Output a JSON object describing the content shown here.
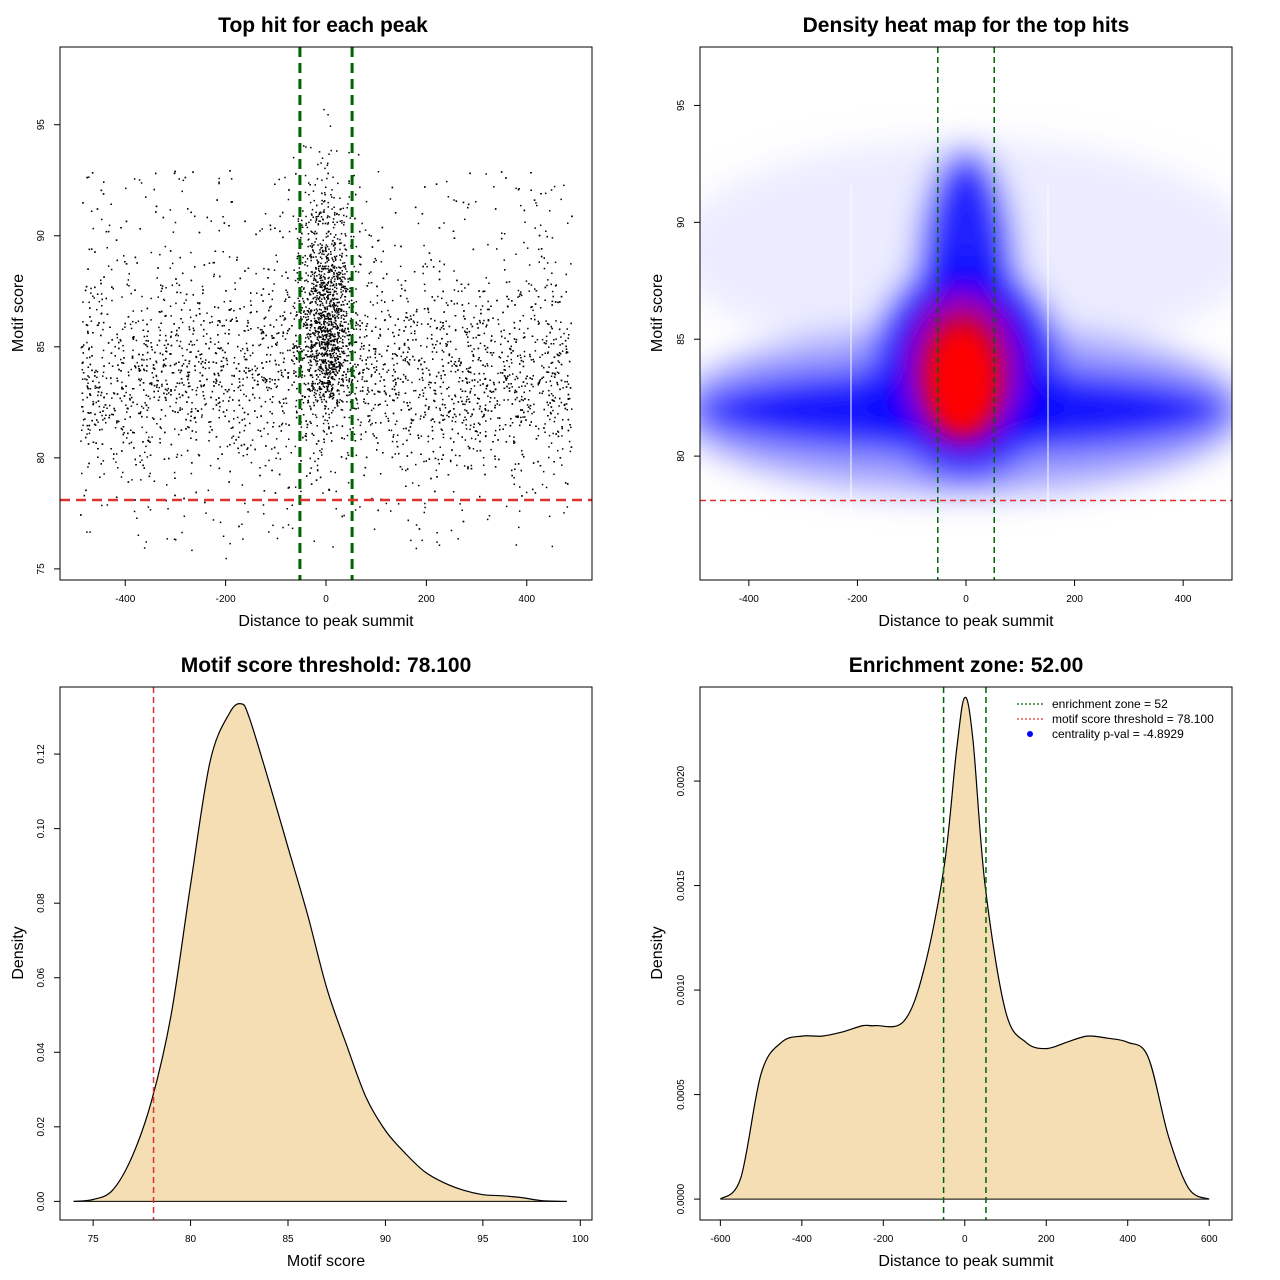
{
  "chart_data": [
    {
      "type": "scatter",
      "title": "Top hit for each peak",
      "xlabel": "Distance to peak summit",
      "ylabel": "Motif score",
      "xlim": [
        -530,
        530
      ],
      "ylim": [
        74.5,
        98.5
      ],
      "xticks": [
        -400,
        -200,
        0,
        200,
        400
      ],
      "yticks": [
        75,
        80,
        85,
        90,
        95
      ],
      "vlines": [
        -52,
        52
      ],
      "hline": 78.1,
      "colors": {
        "points": "#000000",
        "vline": "#006400",
        "hline": "#e03030"
      },
      "points_summary": {
        "n_approx": 6000,
        "x_range": [
          -490,
          490
        ],
        "y_range": [
          75.5,
          97.5
        ],
        "center_y": 83,
        "central_peak_x": 0
      }
    },
    {
      "type": "heatmap",
      "title": "Density heat map for the top hits",
      "xlabel": "Distance to peak summit",
      "ylabel": "Motif score",
      "xlim": [
        -490,
        490
      ],
      "ylim": [
        74.7,
        97.5
      ],
      "xticks": [
        -400,
        -200,
        0,
        200,
        400
      ],
      "yticks": [
        80,
        85,
        90,
        95
      ],
      "vlines": [
        -52,
        52
      ],
      "hline": 78.1,
      "colors": {
        "low": "#ffffff",
        "mid": "#0000ff",
        "high": "#ff0000",
        "vline": "#006400",
        "hline": "#e03030"
      }
    },
    {
      "type": "area",
      "title": "Motif score threshold: 78.100",
      "xlabel": "Motif score",
      "ylabel": "Density",
      "xlim": [
        73.3,
        100.6
      ],
      "ylim": [
        -0.005,
        0.138
      ],
      "xticks": [
        75,
        80,
        85,
        90,
        95,
        100
      ],
      "yticks": [
        0.0,
        0.02,
        0.04,
        0.06,
        0.08,
        0.1,
        0.12
      ],
      "ytick_labels": [
        "0.00",
        "0.02",
        "0.04",
        "0.06",
        "0.08",
        "0.10",
        "0.12"
      ],
      "vline": 78.1,
      "x": [
        74,
        75,
        76,
        77,
        78,
        79,
        80,
        81,
        82,
        82.6,
        83,
        84,
        85,
        86,
        87,
        88,
        89,
        90,
        91,
        92,
        93,
        94,
        95,
        96,
        97,
        98,
        99,
        99.3
      ],
      "y": [
        0,
        0.0005,
        0.003,
        0.012,
        0.027,
        0.05,
        0.085,
        0.118,
        0.131,
        0.1335,
        0.13,
        0.113,
        0.095,
        0.077,
        0.057,
        0.042,
        0.028,
        0.019,
        0.013,
        0.008,
        0.005,
        0.003,
        0.0018,
        0.0015,
        0.001,
        0.0002,
        0,
        0
      ],
      "colors": {
        "fill": "#f5deb3",
        "line": "#000000",
        "vline": "#e03030"
      }
    },
    {
      "type": "area",
      "title": "Enrichment zone: 52.00",
      "xlabel": "Distance to peak summit",
      "ylabel": "Density",
      "xlim": [
        -650,
        656
      ],
      "ylim": [
        -0.0001,
        0.00245
      ],
      "xticks": [
        -600,
        -400,
        -200,
        0,
        200,
        400,
        600
      ],
      "yticks": [
        0.0,
        0.0005,
        0.001,
        0.0015,
        0.002
      ],
      "ytick_labels": [
        "0.0000",
        "0.0005",
        "0.0010",
        "0.0015",
        "0.0020"
      ],
      "vlines": [
        -52,
        52
      ],
      "x": [
        -600,
        -550,
        -500,
        -450,
        -400,
        -350,
        -300,
        -250,
        -220,
        -150,
        -100,
        -50,
        -20,
        0,
        20,
        50,
        100,
        150,
        200,
        250,
        300,
        350,
        400,
        450,
        500,
        550,
        600
      ],
      "y": [
        0,
        0.0001,
        0.0006,
        0.00075,
        0.00078,
        0.00078,
        0.0008,
        0.00083,
        0.00083,
        0.00085,
        0.0011,
        0.0016,
        0.00215,
        0.0024,
        0.0022,
        0.0015,
        0.0009,
        0.00075,
        0.00072,
        0.00075,
        0.00078,
        0.00077,
        0.00075,
        0.00068,
        0.0003,
        5e-05,
        0
      ],
      "colors": {
        "fill": "#f5deb3",
        "line": "#000000",
        "vline": "#006400"
      },
      "legend": [
        {
          "label": "enrichment zone = 52",
          "style": "dotted",
          "color": "#006400"
        },
        {
          "label": "motif score threshold = 78.100",
          "style": "dotted",
          "color": "#e03030"
        },
        {
          "label": "centrality p-val = -4.8929",
          "style": "point",
          "color": "#0000ff"
        }
      ]
    }
  ]
}
